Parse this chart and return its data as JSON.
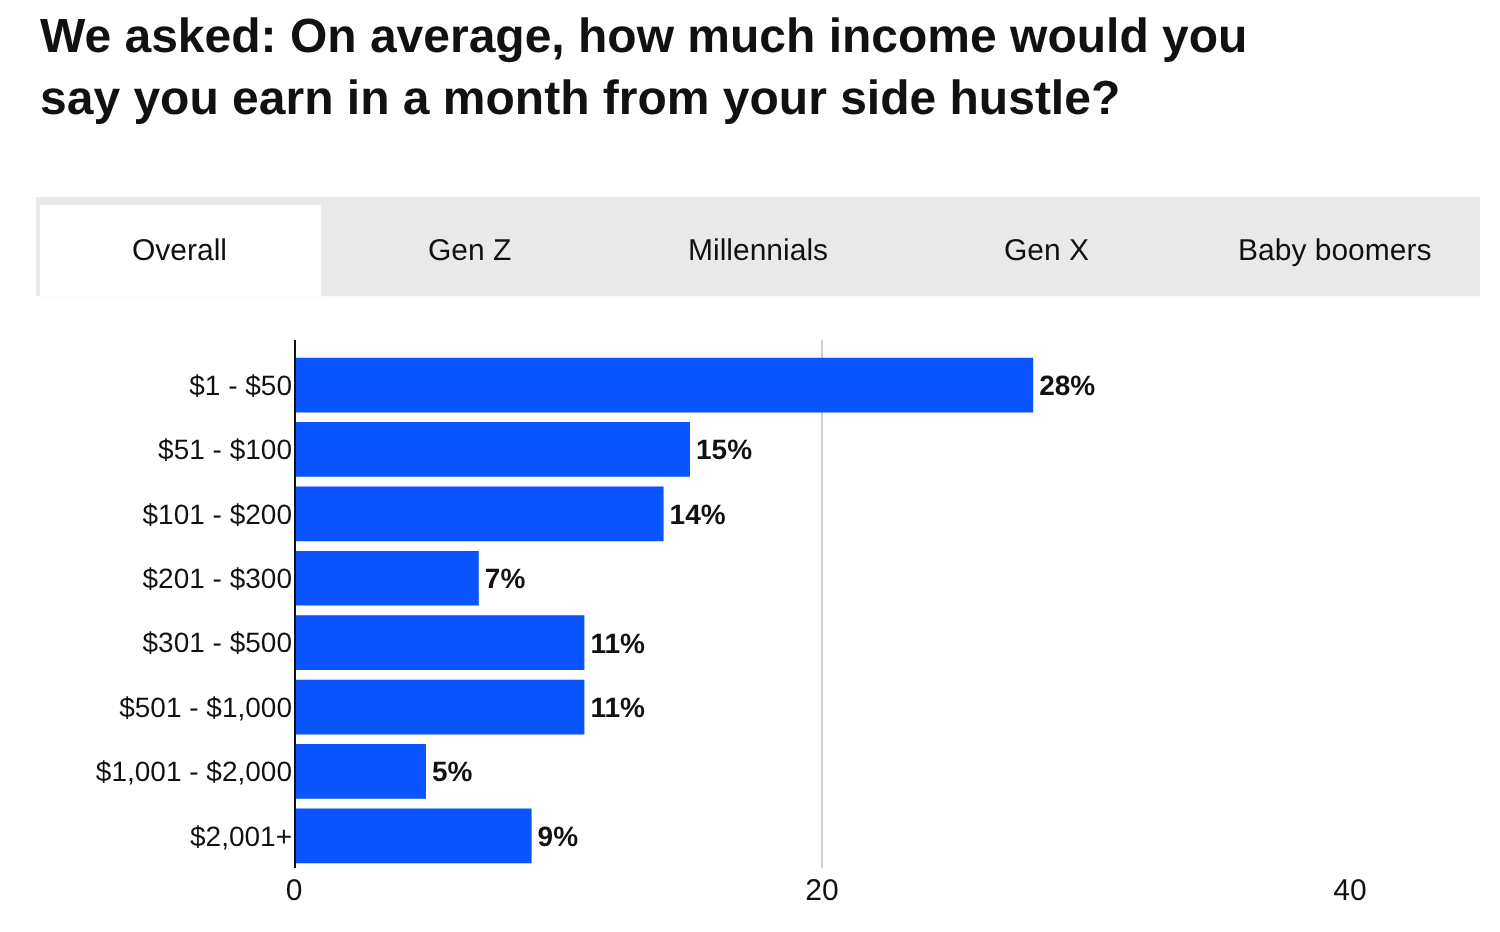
{
  "chart_data": {
    "type": "bar",
    "orientation": "horizontal",
    "title": "We asked: On average, how much income would you say you earn in a month from your side hustle?",
    "annotations": [
      "Overall",
      "Gen Z",
      "Millennials",
      "Gen X",
      "Baby boomers"
    ],
    "categories": [
      "$1 - $50",
      "$51 - $100",
      "$101 - $200",
      "$201 - $300",
      "$301 - $500",
      "$501 - $1,000",
      "$1,001 - $2,000",
      "$2,001+"
    ],
    "values": [
      28,
      15,
      14,
      7,
      11,
      11,
      5,
      9
    ],
    "value_labels": [
      "28%",
      "15%",
      "14%",
      "7%",
      "11%",
      "11%",
      "5%",
      "9%"
    ],
    "color": "#0a55ff",
    "xlim": [
      0,
      40
    ],
    "xticks": [
      0,
      20,
      40
    ],
    "grid": "x",
    "legend": false
  }
}
